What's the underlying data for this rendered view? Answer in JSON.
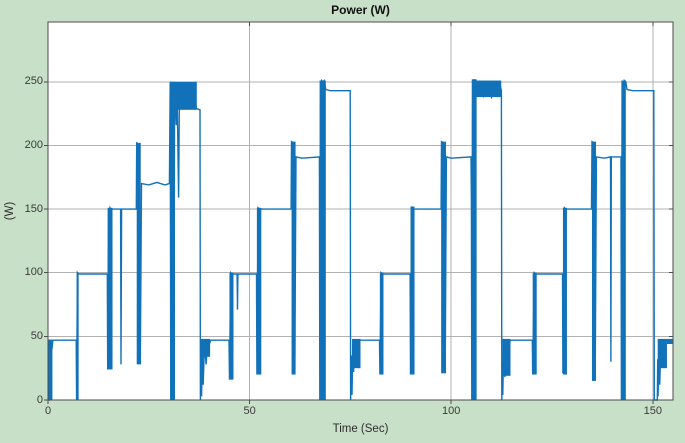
{
  "figure": {
    "bg_color": "#c8dfc8",
    "plot_bg_color": "#ffffff"
  },
  "chart_data": {
    "type": "line",
    "title": "Power (W)",
    "xlabel": "Time (Sec)",
    "ylabel": "(W)",
    "xlim": [
      0,
      155
    ],
    "ylim": [
      0,
      297
    ],
    "xticks": [
      0,
      50,
      100,
      150
    ],
    "yticks": [
      0,
      50,
      100,
      150,
      200,
      250
    ],
    "grid": true,
    "legend": "none",
    "line_color": "#1272b9",
    "grid_color": "#b2b2b2",
    "axis_color": "#4d4d4d",
    "series_name": "Power",
    "points": [
      [
        0,
        0
      ],
      [
        0.35,
        0
      ],
      [
        0.5,
        40
      ],
      [
        0.65,
        8
      ],
      [
        0.8,
        46
      ],
      [
        1.0,
        40
      ],
      [
        1.2,
        47
      ],
      [
        7.0,
        47
      ],
      [
        7.1,
        0
      ],
      [
        7.3,
        100
      ],
      [
        7.5,
        99
      ],
      [
        14.7,
        99
      ],
      [
        14.8,
        24
      ],
      [
        15.0,
        150
      ],
      [
        15.2,
        26
      ],
      [
        15.4,
        151
      ],
      [
        15.6,
        150
      ],
      [
        18.0,
        150
      ],
      [
        18.1,
        28
      ],
      [
        18.25,
        150
      ],
      [
        21.9,
        150
      ],
      [
        22.0,
        202
      ],
      [
        22.6,
        201
      ],
      [
        22.9,
        28
      ],
      [
        23.2,
        170
      ],
      [
        25,
        169
      ],
      [
        27,
        171
      ],
      [
        29,
        169
      ],
      [
        30.1,
        170
      ],
      [
        30.3,
        250
      ],
      [
        30.45,
        0
      ],
      [
        30.6,
        250
      ],
      [
        30.8,
        15
      ],
      [
        31.0,
        250
      ],
      [
        31.2,
        5
      ],
      [
        31.4,
        250
      ],
      [
        31.8,
        216
      ],
      [
        32.0,
        249
      ],
      [
        32.4,
        159
      ],
      [
        32.6,
        249
      ],
      [
        33.4,
        230
      ],
      [
        34.3,
        248
      ],
      [
        35.2,
        229
      ],
      [
        36.1,
        247
      ],
      [
        36.8,
        229
      ],
      [
        37.7,
        228
      ],
      [
        37.8,
        0
      ],
      [
        38.0,
        35
      ],
      [
        38.1,
        3
      ],
      [
        38.3,
        42
      ],
      [
        38.5,
        12
      ],
      [
        38.8,
        45
      ],
      [
        39.2,
        28
      ],
      [
        39.6,
        46
      ],
      [
        40.0,
        44
      ],
      [
        40.4,
        47
      ],
      [
        44.9,
        47
      ],
      [
        45.0,
        16
      ],
      [
        45.3,
        100
      ],
      [
        45.6,
        99
      ],
      [
        46.9,
        99
      ],
      [
        47.0,
        71
      ],
      [
        47.1,
        99
      ],
      [
        51.7,
        99
      ],
      [
        51.8,
        20
      ],
      [
        52.1,
        151
      ],
      [
        52.4,
        150
      ],
      [
        60.3,
        150
      ],
      [
        60.4,
        203
      ],
      [
        60.9,
        202
      ],
      [
        61.2,
        20
      ],
      [
        61.5,
        191
      ],
      [
        63,
        190
      ],
      [
        67.3,
        191
      ],
      [
        67.4,
        0
      ],
      [
        67.55,
        251
      ],
      [
        67.7,
        8
      ],
      [
        67.9,
        251
      ],
      [
        68.2,
        250
      ],
      [
        68.5,
        251
      ],
      [
        68.9,
        244
      ],
      [
        70,
        243
      ],
      [
        74.8,
        243
      ],
      [
        74.95,
        243
      ],
      [
        75.05,
        0
      ],
      [
        75.3,
        35
      ],
      [
        75.4,
        4
      ],
      [
        75.6,
        43
      ],
      [
        75.8,
        22
      ],
      [
        76.1,
        46
      ],
      [
        76.5,
        34
      ],
      [
        76.9,
        47
      ],
      [
        77.4,
        47
      ],
      [
        82.2,
        47
      ],
      [
        82.3,
        20
      ],
      [
        82.6,
        100
      ],
      [
        82.9,
        99
      ],
      [
        89.8,
        99
      ],
      [
        89.9,
        20
      ],
      [
        90.2,
        152
      ],
      [
        90.5,
        150
      ],
      [
        97.5,
        150
      ],
      [
        97.6,
        203
      ],
      [
        98.1,
        202
      ],
      [
        98.5,
        21
      ],
      [
        98.8,
        191
      ],
      [
        100,
        190
      ],
      [
        104.9,
        191
      ],
      [
        105.0,
        156
      ],
      [
        105.1,
        0
      ],
      [
        105.3,
        251
      ],
      [
        105.5,
        20
      ],
      [
        105.7,
        252
      ],
      [
        106.0,
        245
      ],
      [
        107.0,
        250
      ],
      [
        108.0,
        239
      ],
      [
        109.0,
        249
      ],
      [
        110.0,
        238
      ],
      [
        111.0,
        249
      ],
      [
        111.8,
        240
      ],
      [
        112.3,
        245
      ],
      [
        112.45,
        243
      ],
      [
        112.55,
        0
      ],
      [
        112.7,
        30
      ],
      [
        112.8,
        4
      ],
      [
        113.0,
        42
      ],
      [
        113.3,
        18
      ],
      [
        113.6,
        45
      ],
      [
        114.0,
        33
      ],
      [
        114.4,
        46
      ],
      [
        114.9,
        47
      ],
      [
        120.1,
        47
      ],
      [
        120.2,
        20
      ],
      [
        120.6,
        100
      ],
      [
        120.9,
        99
      ],
      [
        127.6,
        99
      ],
      [
        127.7,
        21
      ],
      [
        128.1,
        151
      ],
      [
        128.4,
        150
      ],
      [
        134.8,
        150
      ],
      [
        134.9,
        203
      ],
      [
        135.4,
        202
      ],
      [
        135.7,
        15
      ],
      [
        136.0,
        191
      ],
      [
        138,
        190
      ],
      [
        139.5,
        191
      ],
      [
        139.6,
        30
      ],
      [
        139.7,
        191
      ],
      [
        142.1,
        191
      ],
      [
        142.2,
        0
      ],
      [
        142.4,
        251
      ],
      [
        142.6,
        25
      ],
      [
        142.75,
        0
      ],
      [
        142.95,
        251
      ],
      [
        143.3,
        250
      ],
      [
        143.6,
        244
      ],
      [
        145,
        243
      ],
      [
        150.1,
        243
      ],
      [
        150.25,
        243
      ],
      [
        150.35,
        0
      ],
      [
        151.1,
        0
      ],
      [
        151.2,
        32
      ],
      [
        151.3,
        3
      ],
      [
        151.5,
        40
      ],
      [
        151.7,
        12
      ],
      [
        152.0,
        44
      ],
      [
        152.4,
        28
      ],
      [
        152.8,
        46
      ],
      [
        153.2,
        47
      ],
      [
        155,
        47
      ]
    ],
    "noise_bands": [
      [
        0.05,
        1.1,
        0,
        47.5
      ],
      [
        7.1,
        7.6,
        0,
        100
      ],
      [
        14.8,
        16.0,
        24,
        151
      ],
      [
        22.0,
        23.0,
        28,
        202
      ],
      [
        30.3,
        31.5,
        0,
        250
      ],
      [
        30.8,
        36.9,
        228,
        250
      ],
      [
        37.9,
        40.2,
        34,
        48
      ],
      [
        45.0,
        46.0,
        16,
        100
      ],
      [
        51.8,
        52.9,
        20,
        151
      ],
      [
        60.4,
        61.4,
        20,
        203
      ],
      [
        67.4,
        68.9,
        0,
        251
      ],
      [
        75.4,
        77.5,
        25,
        48
      ],
      [
        82.3,
        83.2,
        20,
        100
      ],
      [
        89.9,
        90.9,
        20,
        152
      ],
      [
        97.5,
        98.7,
        21,
        203
      ],
      [
        105.1,
        106.3,
        0,
        252
      ],
      [
        105.6,
        112.4,
        238,
        251
      ],
      [
        112.7,
        114.7,
        19,
        48
      ],
      [
        120.2,
        121.2,
        20,
        100
      ],
      [
        127.7,
        128.7,
        20,
        151
      ],
      [
        134.9,
        135.9,
        15,
        203
      ],
      [
        142.2,
        143.3,
        0,
        251
      ],
      [
        151.2,
        153.5,
        25,
        48
      ],
      [
        153.5,
        155,
        44,
        48
      ]
    ]
  }
}
